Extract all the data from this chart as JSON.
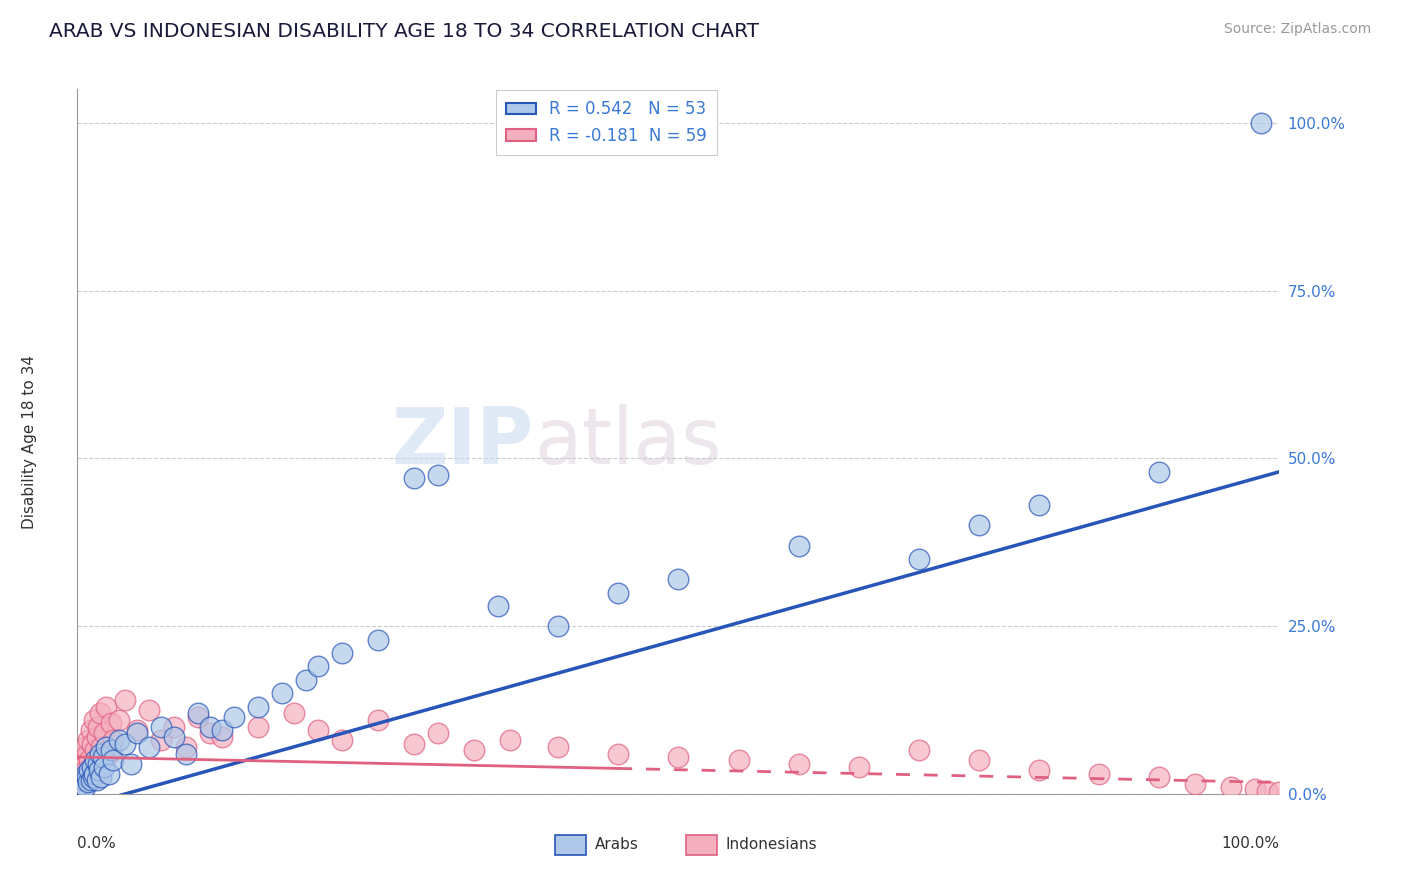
{
  "title": "ARAB VS INDONESIAN DISABILITY AGE 18 TO 34 CORRELATION CHART",
  "source": "Source: ZipAtlas.com",
  "ylabel": "Disability Age 18 to 34",
  "xlim": [
    0,
    100
  ],
  "ylim": [
    0,
    105
  ],
  "legend_arab_r": "R = 0.542",
  "legend_arab_n": "N = 53",
  "legend_indo_r": "R = -0.181",
  "legend_indo_n": "N = 59",
  "arab_color": "#adc8e8",
  "indo_color": "#f5b0bf",
  "arab_line_color": "#2855b8",
  "indo_line_color": "#e06080",
  "watermark_zip": "ZIP",
  "watermark_atlas": "atlas",
  "background_color": "#ffffff",
  "ytick_positions": [
    0,
    25,
    50,
    75,
    100
  ],
  "ytick_labels": [
    "0.0%",
    "25.0%",
    "50.0%",
    "75.0%",
    "100.0%"
  ],
  "arab_x": [
    0.3,
    0.5,
    0.6,
    0.7,
    0.8,
    0.9,
    1.0,
    1.1,
    1.2,
    1.3,
    1.4,
    1.5,
    1.6,
    1.7,
    1.8,
    1.9,
    2.0,
    2.1,
    2.2,
    2.4,
    2.6,
    2.8,
    3.0,
    3.5,
    4.0,
    4.5,
    5.0,
    6.0,
    7.0,
    8.0,
    9.0,
    10.0,
    11.0,
    12.0,
    13.0,
    15.0,
    17.0,
    19.0,
    20.0,
    22.0,
    25.0,
    28.0,
    30.0,
    35.0,
    40.0,
    45.0,
    50.0,
    60.0,
    70.0,
    75.0,
    80.0,
    90.0,
    98.5
  ],
  "arab_y": [
    1.5,
    2.0,
    1.0,
    3.0,
    2.5,
    1.8,
    3.5,
    2.0,
    4.0,
    2.5,
    3.0,
    5.0,
    2.0,
    4.5,
    3.5,
    6.0,
    2.5,
    5.5,
    4.0,
    7.0,
    3.0,
    6.5,
    5.0,
    8.0,
    7.5,
    4.5,
    9.0,
    7.0,
    10.0,
    8.5,
    6.0,
    12.0,
    10.0,
    9.5,
    11.5,
    13.0,
    15.0,
    17.0,
    19.0,
    21.0,
    23.0,
    47.0,
    47.5,
    28.0,
    25.0,
    30.0,
    32.0,
    37.0,
    35.0,
    40.0,
    43.0,
    48.0,
    100.0
  ],
  "indo_x": [
    0.2,
    0.3,
    0.4,
    0.5,
    0.6,
    0.7,
    0.8,
    0.9,
    1.0,
    1.1,
    1.2,
    1.3,
    1.4,
    1.5,
    1.6,
    1.7,
    1.8,
    1.9,
    2.0,
    2.2,
    2.4,
    2.6,
    2.8,
    3.0,
    3.5,
    4.0,
    5.0,
    6.0,
    7.0,
    8.0,
    9.0,
    10.0,
    11.0,
    12.0,
    15.0,
    18.0,
    20.0,
    22.0,
    25.0,
    28.0,
    30.0,
    33.0,
    36.0,
    40.0,
    45.0,
    50.0,
    55.0,
    60.0,
    65.0,
    70.0,
    75.0,
    80.0,
    85.0,
    90.0,
    93.0,
    96.0,
    98.0,
    99.0,
    100.0
  ],
  "indo_y": [
    3.0,
    2.0,
    5.0,
    4.0,
    7.0,
    3.5,
    6.0,
    8.0,
    5.0,
    9.5,
    7.5,
    4.5,
    11.0,
    6.5,
    8.5,
    10.0,
    5.5,
    12.0,
    7.0,
    9.0,
    13.0,
    6.0,
    10.5,
    8.0,
    11.0,
    14.0,
    9.5,
    12.5,
    8.0,
    10.0,
    7.0,
    11.5,
    9.0,
    8.5,
    10.0,
    12.0,
    9.5,
    8.0,
    11.0,
    7.5,
    9.0,
    6.5,
    8.0,
    7.0,
    6.0,
    5.5,
    5.0,
    4.5,
    4.0,
    6.5,
    5.0,
    3.5,
    3.0,
    2.5,
    1.5,
    1.0,
    0.8,
    0.5,
    0.3
  ]
}
